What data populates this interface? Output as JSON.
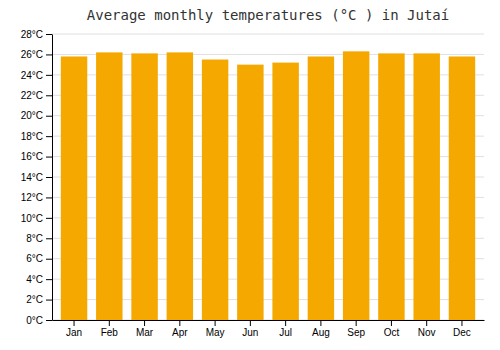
{
  "chart_data": {
    "type": "bar",
    "title": "Average monthly temperatures (°C ) in Jutaí",
    "categories": [
      "Jan",
      "Feb",
      "Mar",
      "Apr",
      "May",
      "Jun",
      "Jul",
      "Aug",
      "Sep",
      "Oct",
      "Nov",
      "Dec"
    ],
    "values": [
      25.8,
      26.2,
      26.1,
      26.2,
      25.5,
      25.0,
      25.2,
      25.8,
      26.3,
      26.1,
      26.1,
      25.8
    ],
    "color": "#F5A800",
    "ylim": [
      0,
      28
    ],
    "yticks": [
      {
        "value": 0,
        "label": "0°C"
      },
      {
        "value": 2,
        "label": "2°C"
      },
      {
        "value": 4,
        "label": "4°C"
      },
      {
        "value": 6,
        "label": "6°C"
      },
      {
        "value": 8,
        "label": "8°C"
      },
      {
        "value": 10,
        "label": "10°C"
      },
      {
        "value": 12,
        "label": "12°C"
      },
      {
        "value": 14,
        "label": "14°C"
      },
      {
        "value": 16,
        "label": "16°C"
      },
      {
        "value": 18,
        "label": "18°C"
      },
      {
        "value": 20,
        "label": "20°C"
      },
      {
        "value": 22,
        "label": "22°C"
      },
      {
        "value": 24,
        "label": "24°C"
      },
      {
        "value": 26,
        "label": "26°C"
      },
      {
        "value": 28,
        "label": "28°C"
      }
    ],
    "grid": true
  }
}
